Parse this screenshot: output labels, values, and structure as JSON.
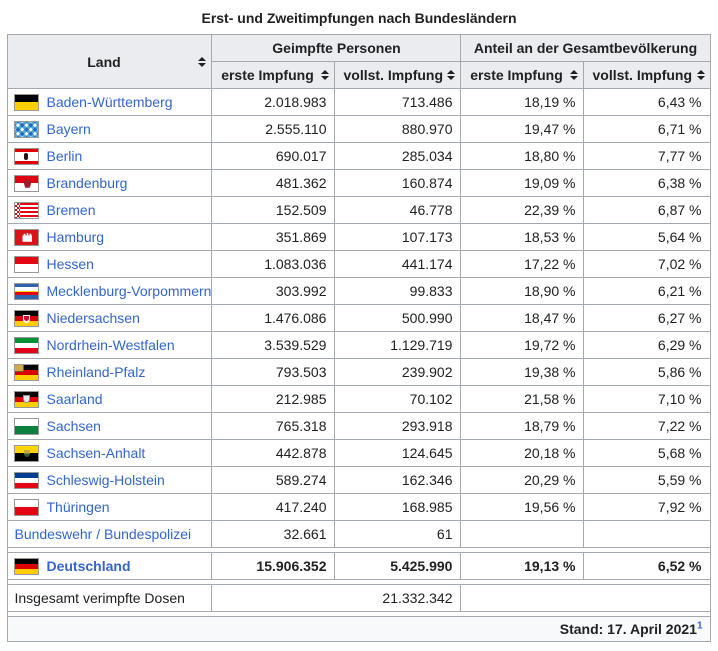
{
  "title": "Erst- und Zweitimpfungen nach Bundesländern",
  "colors": {
    "link": "#3366cc",
    "border": "#a2a9b1",
    "header_bg": "#eaecf0",
    "footer_bg": "#f8f9fa"
  },
  "table": {
    "headers": {
      "land": "Land",
      "group_geimpfte": "Geimpfte Personen",
      "group_anteil": "Anteil an der Gesamtbevölkerung",
      "sub_erste_1": "erste Impfung",
      "sub_vollst_1": "vollst. Impfung",
      "sub_erste_2": "erste Impfung",
      "sub_vollst_2": "vollst. Impfung"
    },
    "rows": [
      {
        "name": "Baden-Württemberg",
        "flag": "bw",
        "erste": "2.018.983",
        "vollst": "713.486",
        "pct_erste": "18,19 %",
        "pct_vollst": "6,43 %"
      },
      {
        "name": "Bayern",
        "flag": "by",
        "erste": "2.555.110",
        "vollst": "880.970",
        "pct_erste": "19,47 %",
        "pct_vollst": "6,71 %"
      },
      {
        "name": "Berlin",
        "flag": "be",
        "erste": "690.017",
        "vollst": "285.034",
        "pct_erste": "18,80 %",
        "pct_vollst": "7,77 %"
      },
      {
        "name": "Brandenburg",
        "flag": "bb",
        "erste": "481.362",
        "vollst": "160.874",
        "pct_erste": "19,09 %",
        "pct_vollst": "6,38 %"
      },
      {
        "name": "Bremen",
        "flag": "hb",
        "erste": "152.509",
        "vollst": "46.778",
        "pct_erste": "22,39 %",
        "pct_vollst": "6,87 %"
      },
      {
        "name": "Hamburg",
        "flag": "hh",
        "erste": "351.869",
        "vollst": "107.173",
        "pct_erste": "18,53 %",
        "pct_vollst": "5,64 %"
      },
      {
        "name": "Hessen",
        "flag": "he",
        "erste": "1.083.036",
        "vollst": "441.174",
        "pct_erste": "17,22 %",
        "pct_vollst": "7,02 %"
      },
      {
        "name": "Mecklenburg-Vorpommern",
        "flag": "mv",
        "erste": "303.992",
        "vollst": "99.833",
        "pct_erste": "18,90 %",
        "pct_vollst": "6,21 %"
      },
      {
        "name": "Niedersachsen",
        "flag": "ni",
        "erste": "1.476.086",
        "vollst": "500.990",
        "pct_erste": "18,47 %",
        "pct_vollst": "6,27 %"
      },
      {
        "name": "Nordrhein-Westfalen",
        "flag": "nw",
        "erste": "3.539.529",
        "vollst": "1.129.719",
        "pct_erste": "19,72 %",
        "pct_vollst": "6,29 %"
      },
      {
        "name": "Rheinland-Pfalz",
        "flag": "rp",
        "erste": "793.503",
        "vollst": "239.902",
        "pct_erste": "19,38 %",
        "pct_vollst": "5,86 %"
      },
      {
        "name": "Saarland",
        "flag": "sl",
        "erste": "212.985",
        "vollst": "70.102",
        "pct_erste": "21,58 %",
        "pct_vollst": "7,10 %"
      },
      {
        "name": "Sachsen",
        "flag": "sn",
        "erste": "765.318",
        "vollst": "293.918",
        "pct_erste": "18,79 %",
        "pct_vollst": "7,22 %"
      },
      {
        "name": "Sachsen-Anhalt",
        "flag": "st",
        "erste": "442.878",
        "vollst": "124.645",
        "pct_erste": "20,18 %",
        "pct_vollst": "5,68 %"
      },
      {
        "name": "Schleswig-Holstein",
        "flag": "sh",
        "erste": "589.274",
        "vollst": "162.346",
        "pct_erste": "20,29 %",
        "pct_vollst": "5,59 %"
      },
      {
        "name": "Thüringen",
        "flag": "th",
        "erste": "417.240",
        "vollst": "168.985",
        "pct_erste": "19,56 %",
        "pct_vollst": "7,92 %"
      },
      {
        "name": "Bundeswehr / Bundespolizei",
        "flag": null,
        "erste": "32.661",
        "vollst": "61",
        "pct_erste": "",
        "pct_vollst": ""
      }
    ],
    "total": {
      "name": "Deutschland",
      "flag": "de",
      "erste": "15.906.352",
      "vollst": "5.425.990",
      "pct_erste": "19,13 %",
      "pct_vollst": "6,52 %"
    },
    "doses": {
      "label": "Insgesamt verimpfte Dosen",
      "value": "21.332.342"
    },
    "stand": {
      "label": "Stand: 17. April 2021",
      "ref": "1"
    }
  },
  "flags": {
    "bw": {
      "pattern": "stripes",
      "stripes": [
        [
          "#000000",
          1
        ],
        [
          "#ffce00",
          1
        ]
      ]
    },
    "by": {
      "pattern": "lozenge",
      "colors": [
        "#57a5d9",
        "#ffffff"
      ]
    },
    "be": {
      "pattern": "stripes",
      "stripes": [
        [
          "#dd0000",
          2
        ],
        [
          "#ffffff",
          7
        ],
        [
          "#dd0000",
          2
        ]
      ],
      "emblem": "bear"
    },
    "bb": {
      "pattern": "stripes",
      "stripes": [
        [
          "#e10013",
          1
        ],
        [
          "#ffffff",
          1
        ]
      ],
      "emblem": "eagle"
    },
    "hb": {
      "pattern": "bremen",
      "colors": [
        "#e30613",
        "#ffffff"
      ]
    },
    "hh": {
      "pattern": "stripes",
      "stripes": [
        [
          "#da121a",
          1
        ]
      ],
      "emblem": "castle"
    },
    "he": {
      "pattern": "stripes",
      "stripes": [
        [
          "#e30613",
          1
        ],
        [
          "#ffffff",
          1
        ]
      ]
    },
    "mv": {
      "pattern": "stripes",
      "stripes": [
        [
          "#3063ad",
          3.5
        ],
        [
          "#ffffff",
          3.5
        ],
        [
          "#ffd710",
          1.5
        ],
        [
          "#e30613",
          3
        ],
        [
          "#3063ad",
          3.5
        ]
      ]
    },
    "ni": {
      "pattern": "stripes",
      "stripes": [
        [
          "#000000",
          1
        ],
        [
          "#dd0000",
          1
        ],
        [
          "#ffce00",
          1
        ]
      ],
      "emblem": "horse"
    },
    "nw": {
      "pattern": "stripes",
      "stripes": [
        [
          "#009036",
          1
        ],
        [
          "#ffffff",
          1
        ],
        [
          "#e2001a",
          1
        ]
      ]
    },
    "rp": {
      "pattern": "stripes",
      "stripes": [
        [
          "#000000",
          1
        ],
        [
          "#dd0000",
          1
        ],
        [
          "#ffce00",
          1
        ]
      ],
      "emblem": "canton"
    },
    "sl": {
      "pattern": "stripes",
      "stripes": [
        [
          "#000000",
          1
        ],
        [
          "#dd0000",
          1
        ],
        [
          "#ffce00",
          1
        ]
      ],
      "emblem": "shield"
    },
    "sn": {
      "pattern": "stripes",
      "stripes": [
        [
          "#ffffff",
          1
        ],
        [
          "#0d8040",
          1
        ]
      ]
    },
    "st": {
      "pattern": "stripes",
      "stripes": [
        [
          "#ffd500",
          1
        ],
        [
          "#000000",
          1
        ]
      ],
      "emblem": "st-emblem"
    },
    "sh": {
      "pattern": "stripes",
      "stripes": [
        [
          "#003c8f",
          1
        ],
        [
          "#ffffff",
          1
        ],
        [
          "#e30613",
          1
        ]
      ]
    },
    "th": {
      "pattern": "stripes",
      "stripes": [
        [
          "#ffffff",
          1
        ],
        [
          "#e30613",
          1
        ]
      ]
    },
    "de": {
      "pattern": "stripes",
      "stripes": [
        [
          "#000000",
          1
        ],
        [
          "#dd0000",
          1
        ],
        [
          "#ffce00",
          1
        ]
      ]
    }
  }
}
